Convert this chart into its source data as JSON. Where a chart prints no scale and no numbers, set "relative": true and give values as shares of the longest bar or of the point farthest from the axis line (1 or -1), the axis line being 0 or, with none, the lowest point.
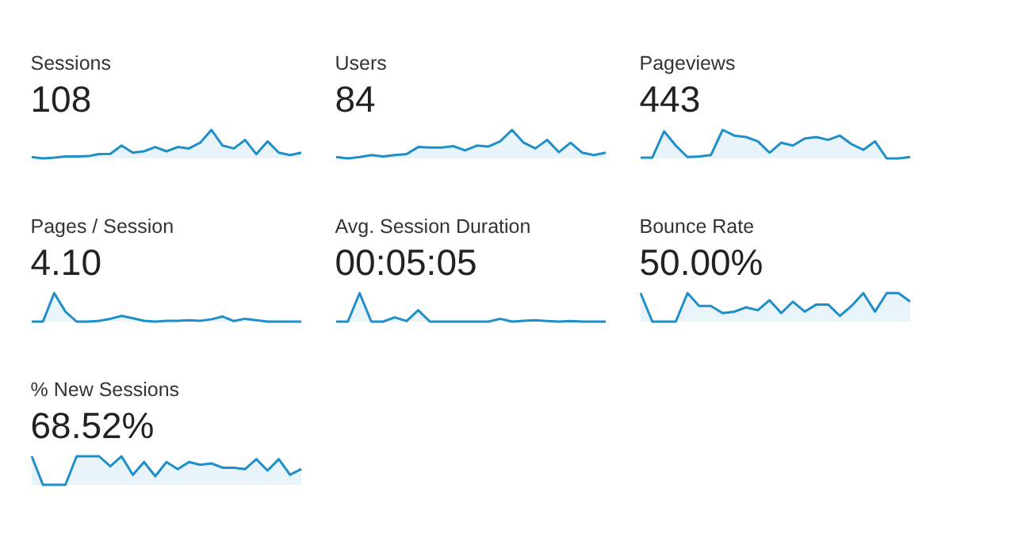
{
  "chart_data": [
    {
      "type": "area",
      "title": "Sessions",
      "subtitle": "108",
      "relative": true,
      "color": "#1f8fc9",
      "categories": [
        null,
        null,
        null,
        null,
        null,
        null,
        null,
        null,
        null,
        null,
        null,
        null,
        null,
        null,
        null,
        null,
        null,
        null,
        null,
        null,
        null,
        null,
        null,
        null,
        null
      ],
      "values": [
        0.05,
        0,
        0.03,
        0.07,
        0.07,
        0.08,
        0.15,
        0.16,
        0.45,
        0.2,
        0.25,
        0.4,
        0.25,
        0.4,
        0.35,
        0.55,
        1,
        0.45,
        0.35,
        0.65,
        0.15,
        0.6,
        0.2,
        0.12,
        0.2
      ]
    },
    {
      "type": "area",
      "title": "Users",
      "subtitle": "84",
      "relative": true,
      "color": "#1f8fc9",
      "categories": [
        null,
        null,
        null,
        null,
        null,
        null,
        null,
        null,
        null,
        null,
        null,
        null,
        null,
        null,
        null,
        null,
        null,
        null,
        null,
        null,
        null,
        null,
        null,
        null
      ],
      "values": [
        0.05,
        0,
        0.05,
        0.12,
        0.07,
        0.12,
        0.15,
        0.4,
        0.38,
        0.38,
        0.43,
        0.28,
        0.45,
        0.42,
        0.6,
        1,
        0.55,
        0.35,
        0.65,
        0.22,
        0.55,
        0.2,
        0.12,
        0.2
      ]
    },
    {
      "type": "area",
      "title": "Pageviews",
      "subtitle": "443",
      "relative": true,
      "color": "#1f8fc9",
      "categories": [
        null,
        null,
        null,
        null,
        null,
        null,
        null,
        null,
        null,
        null,
        null,
        null,
        null,
        null,
        null,
        null,
        null,
        null,
        null,
        null,
        null,
        null,
        null,
        null
      ],
      "values": [
        0.03,
        0.03,
        0.95,
        0.45,
        0.05,
        0.07,
        0.12,
        1,
        0.8,
        0.75,
        0.6,
        0.2,
        0.55,
        0.45,
        0.7,
        0.75,
        0.65,
        0.8,
        0.5,
        0.3,
        0.6,
        0,
        0,
        0.05
      ]
    },
    {
      "type": "area",
      "title": "Pages / Session",
      "subtitle": "4.10",
      "relative": true,
      "color": "#1f8fc9",
      "categories": [
        null,
        null,
        null,
        null,
        null,
        null,
        null,
        null,
        null,
        null,
        null,
        null,
        null,
        null,
        null,
        null,
        null,
        null,
        null,
        null,
        null,
        null,
        null,
        null,
        null
      ],
      "values": [
        0,
        0,
        1,
        0.35,
        0,
        0,
        0.03,
        0.1,
        0.2,
        0.12,
        0.03,
        0,
        0.03,
        0.03,
        0.05,
        0.03,
        0.08,
        0.18,
        0.02,
        0.1,
        0.05,
        0,
        0,
        0,
        0
      ]
    },
    {
      "type": "area",
      "title": "Avg. Session Duration",
      "subtitle": "00:05:05",
      "relative": true,
      "color": "#1f8fc9",
      "categories": [
        null,
        null,
        null,
        null,
        null,
        null,
        null,
        null,
        null,
        null,
        null,
        null,
        null,
        null,
        null,
        null,
        null,
        null,
        null,
        null,
        null,
        null,
        null,
        null
      ],
      "values": [
        0,
        0,
        1,
        0,
        0,
        0.15,
        0.02,
        0.4,
        0,
        0,
        0,
        0,
        0,
        0,
        0.1,
        0,
        0.03,
        0.05,
        0.02,
        0,
        0.02,
        0,
        0,
        0
      ]
    },
    {
      "type": "area",
      "title": "Bounce Rate",
      "subtitle": "50.00%",
      "relative": true,
      "color": "#1f8fc9",
      "categories": [
        null,
        null,
        null,
        null,
        null,
        null,
        null,
        null,
        null,
        null,
        null,
        null,
        null,
        null,
        null,
        null,
        null,
        null,
        null,
        null,
        null,
        null,
        null,
        null
      ],
      "values": [
        1,
        0,
        0,
        0,
        1,
        0.55,
        0.55,
        0.3,
        0.35,
        0.5,
        0.4,
        0.75,
        0.3,
        0.7,
        0.35,
        0.6,
        0.6,
        0.2,
        0.55,
        1,
        0.35,
        1,
        1,
        0.7
      ]
    },
    {
      "type": "area",
      "title": "% New Sessions",
      "subtitle": "68.52%",
      "relative": true,
      "color": "#1f8fc9",
      "categories": [
        null,
        null,
        null,
        null,
        null,
        null,
        null,
        null,
        null,
        null,
        null,
        null,
        null,
        null,
        null,
        null,
        null,
        null,
        null,
        null,
        null,
        null,
        null,
        null,
        null
      ],
      "values": [
        1,
        0,
        0,
        0,
        1,
        1,
        1,
        0.65,
        1,
        0.35,
        0.8,
        0.3,
        0.8,
        0.55,
        0.8,
        0.7,
        0.75,
        0.6,
        0.6,
        0.55,
        0.9,
        0.5,
        0.9,
        0.35,
        0.55
      ]
    }
  ]
}
